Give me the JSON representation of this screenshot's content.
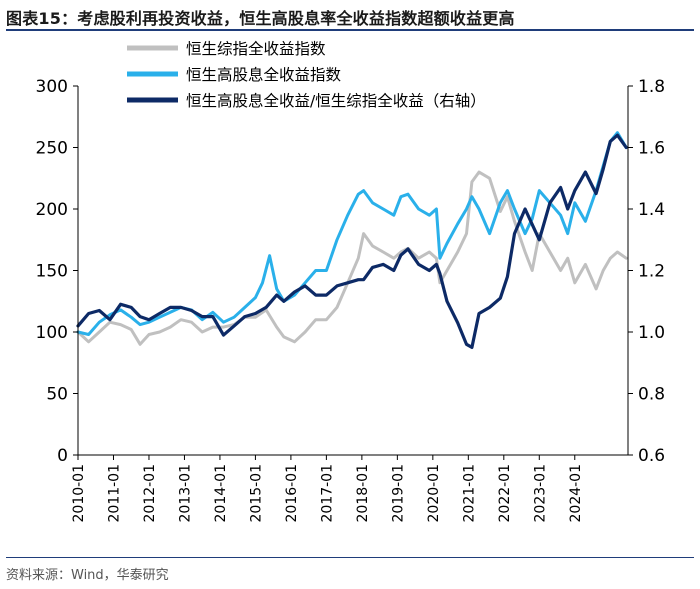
{
  "title": "图表15：考虑股利再投资收益，恒生高股息率全收益指数超额收益更高",
  "source": "资料来源：Wind，华泰研究",
  "chart_data": {
    "type": "line",
    "x_ticks": [
      "2010-01",
      "2011-01",
      "2012-01",
      "2013-01",
      "2014-01",
      "2015-01",
      "2016-01",
      "2017-01",
      "2018-01",
      "2019-01",
      "2020-01",
      "2021-01",
      "2022-01",
      "2023-01",
      "2024-01"
    ],
    "x_range": [
      2010.0,
      2025.5
    ],
    "y_left": {
      "range": [
        0,
        300
      ],
      "ticks": [
        "0",
        "50",
        "100",
        "150",
        "200",
        "250",
        "300"
      ]
    },
    "y_right": {
      "range": [
        0.6,
        1.8
      ],
      "ticks": [
        "0.6",
        "0.8",
        "1.0",
        "1.2",
        "1.4",
        "1.6",
        "1.8"
      ]
    },
    "legend_position": "top-center",
    "series": [
      {
        "name": "恒生综指全收益指数",
        "axis": "left",
        "color": "#c0c0c0",
        "x": [
          2010.0,
          2010.3,
          2010.6,
          2010.9,
          2011.2,
          2011.5,
          2011.75,
          2012.0,
          2012.3,
          2012.6,
          2012.9,
          2013.2,
          2013.5,
          2013.8,
          2014.1,
          2014.4,
          2014.7,
          2015.0,
          2015.3,
          2015.6,
          2015.8,
          2016.1,
          2016.4,
          2016.7,
          2017.0,
          2017.3,
          2017.6,
          2017.9,
          2018.05,
          2018.3,
          2018.6,
          2018.9,
          2019.1,
          2019.3,
          2019.6,
          2019.9,
          2020.1,
          2020.2,
          2020.4,
          2020.7,
          2020.95,
          2021.1,
          2021.3,
          2021.6,
          2021.9,
          2022.1,
          2022.3,
          2022.6,
          2022.8,
          2023.0,
          2023.3,
          2023.6,
          2023.8,
          2024.0,
          2024.3,
          2024.6,
          2024.8,
          2025.0,
          2025.2,
          2025.45
        ],
        "y": [
          100,
          92,
          100,
          108,
          106,
          102,
          90,
          98,
          100,
          104,
          110,
          108,
          100,
          104,
          104,
          106,
          112,
          112,
          118,
          104,
          96,
          92,
          100,
          110,
          110,
          120,
          140,
          160,
          180,
          170,
          165,
          160,
          165,
          168,
          160,
          165,
          160,
          140,
          150,
          165,
          180,
          222,
          230,
          225,
          198,
          210,
          190,
          165,
          150,
          180,
          165,
          150,
          160,
          140,
          155,
          135,
          150,
          160,
          165,
          160
        ]
      },
      {
        "name": "恒生高股息全收益指数",
        "axis": "left",
        "color": "#2ab0ea",
        "x": [
          2010.0,
          2010.3,
          2010.6,
          2010.9,
          2011.2,
          2011.5,
          2011.75,
          2012.0,
          2012.3,
          2012.6,
          2012.9,
          2013.2,
          2013.5,
          2013.8,
          2014.1,
          2014.4,
          2014.7,
          2015.0,
          2015.2,
          2015.4,
          2015.6,
          2015.8,
          2016.1,
          2016.4,
          2016.7,
          2017.0,
          2017.3,
          2017.6,
          2017.9,
          2018.05,
          2018.3,
          2018.6,
          2018.9,
          2019.1,
          2019.3,
          2019.6,
          2019.9,
          2020.1,
          2020.2,
          2020.4,
          2020.7,
          2020.95,
          2021.1,
          2021.3,
          2021.6,
          2021.9,
          2022.1,
          2022.3,
          2022.6,
          2022.8,
          2023.0,
          2023.3,
          2023.6,
          2023.8,
          2024.0,
          2024.3,
          2024.6,
          2024.8,
          2025.0,
          2025.2,
          2025.45
        ],
        "y": [
          100,
          98,
          108,
          114,
          118,
          112,
          106,
          108,
          112,
          116,
          120,
          118,
          110,
          116,
          108,
          112,
          120,
          128,
          140,
          162,
          135,
          125,
          130,
          140,
          150,
          150,
          175,
          195,
          212,
          215,
          205,
          200,
          195,
          210,
          212,
          200,
          195,
          200,
          160,
          172,
          188,
          200,
          210,
          200,
          180,
          205,
          215,
          200,
          180,
          192,
          215,
          205,
          195,
          180,
          205,
          190,
          215,
          235,
          255,
          262,
          250
        ]
      },
      {
        "name": "恒生高股息全收益/恒生综指全收益（右轴）",
        "axis": "right",
        "color": "#0d2a66",
        "x": [
          2010.0,
          2010.3,
          2010.6,
          2010.9,
          2011.2,
          2011.5,
          2011.75,
          2012.0,
          2012.3,
          2012.6,
          2012.9,
          2013.2,
          2013.5,
          2013.8,
          2014.1,
          2014.4,
          2014.7,
          2015.0,
          2015.3,
          2015.6,
          2015.8,
          2016.1,
          2016.4,
          2016.7,
          2017.0,
          2017.3,
          2017.6,
          2017.9,
          2018.05,
          2018.3,
          2018.6,
          2018.9,
          2019.1,
          2019.3,
          2019.6,
          2019.9,
          2020.1,
          2020.2,
          2020.4,
          2020.7,
          2020.95,
          2021.1,
          2021.3,
          2021.6,
          2021.9,
          2022.1,
          2022.3,
          2022.6,
          2022.8,
          2023.0,
          2023.3,
          2023.6,
          2023.8,
          2024.0,
          2024.3,
          2024.6,
          2024.8,
          2025.0,
          2025.2,
          2025.45
        ],
        "y": [
          1.02,
          1.06,
          1.07,
          1.04,
          1.09,
          1.08,
          1.05,
          1.04,
          1.06,
          1.08,
          1.08,
          1.07,
          1.05,
          1.05,
          0.99,
          1.02,
          1.05,
          1.06,
          1.08,
          1.12,
          1.1,
          1.13,
          1.15,
          1.12,
          1.12,
          1.15,
          1.16,
          1.17,
          1.17,
          1.21,
          1.22,
          1.2,
          1.25,
          1.27,
          1.22,
          1.2,
          1.22,
          1.19,
          1.1,
          1.03,
          0.96,
          0.95,
          1.06,
          1.08,
          1.11,
          1.18,
          1.32,
          1.4,
          1.35,
          1.3,
          1.42,
          1.47,
          1.4,
          1.46,
          1.52,
          1.45,
          1.53,
          1.62,
          1.64,
          1.6
        ]
      }
    ]
  }
}
